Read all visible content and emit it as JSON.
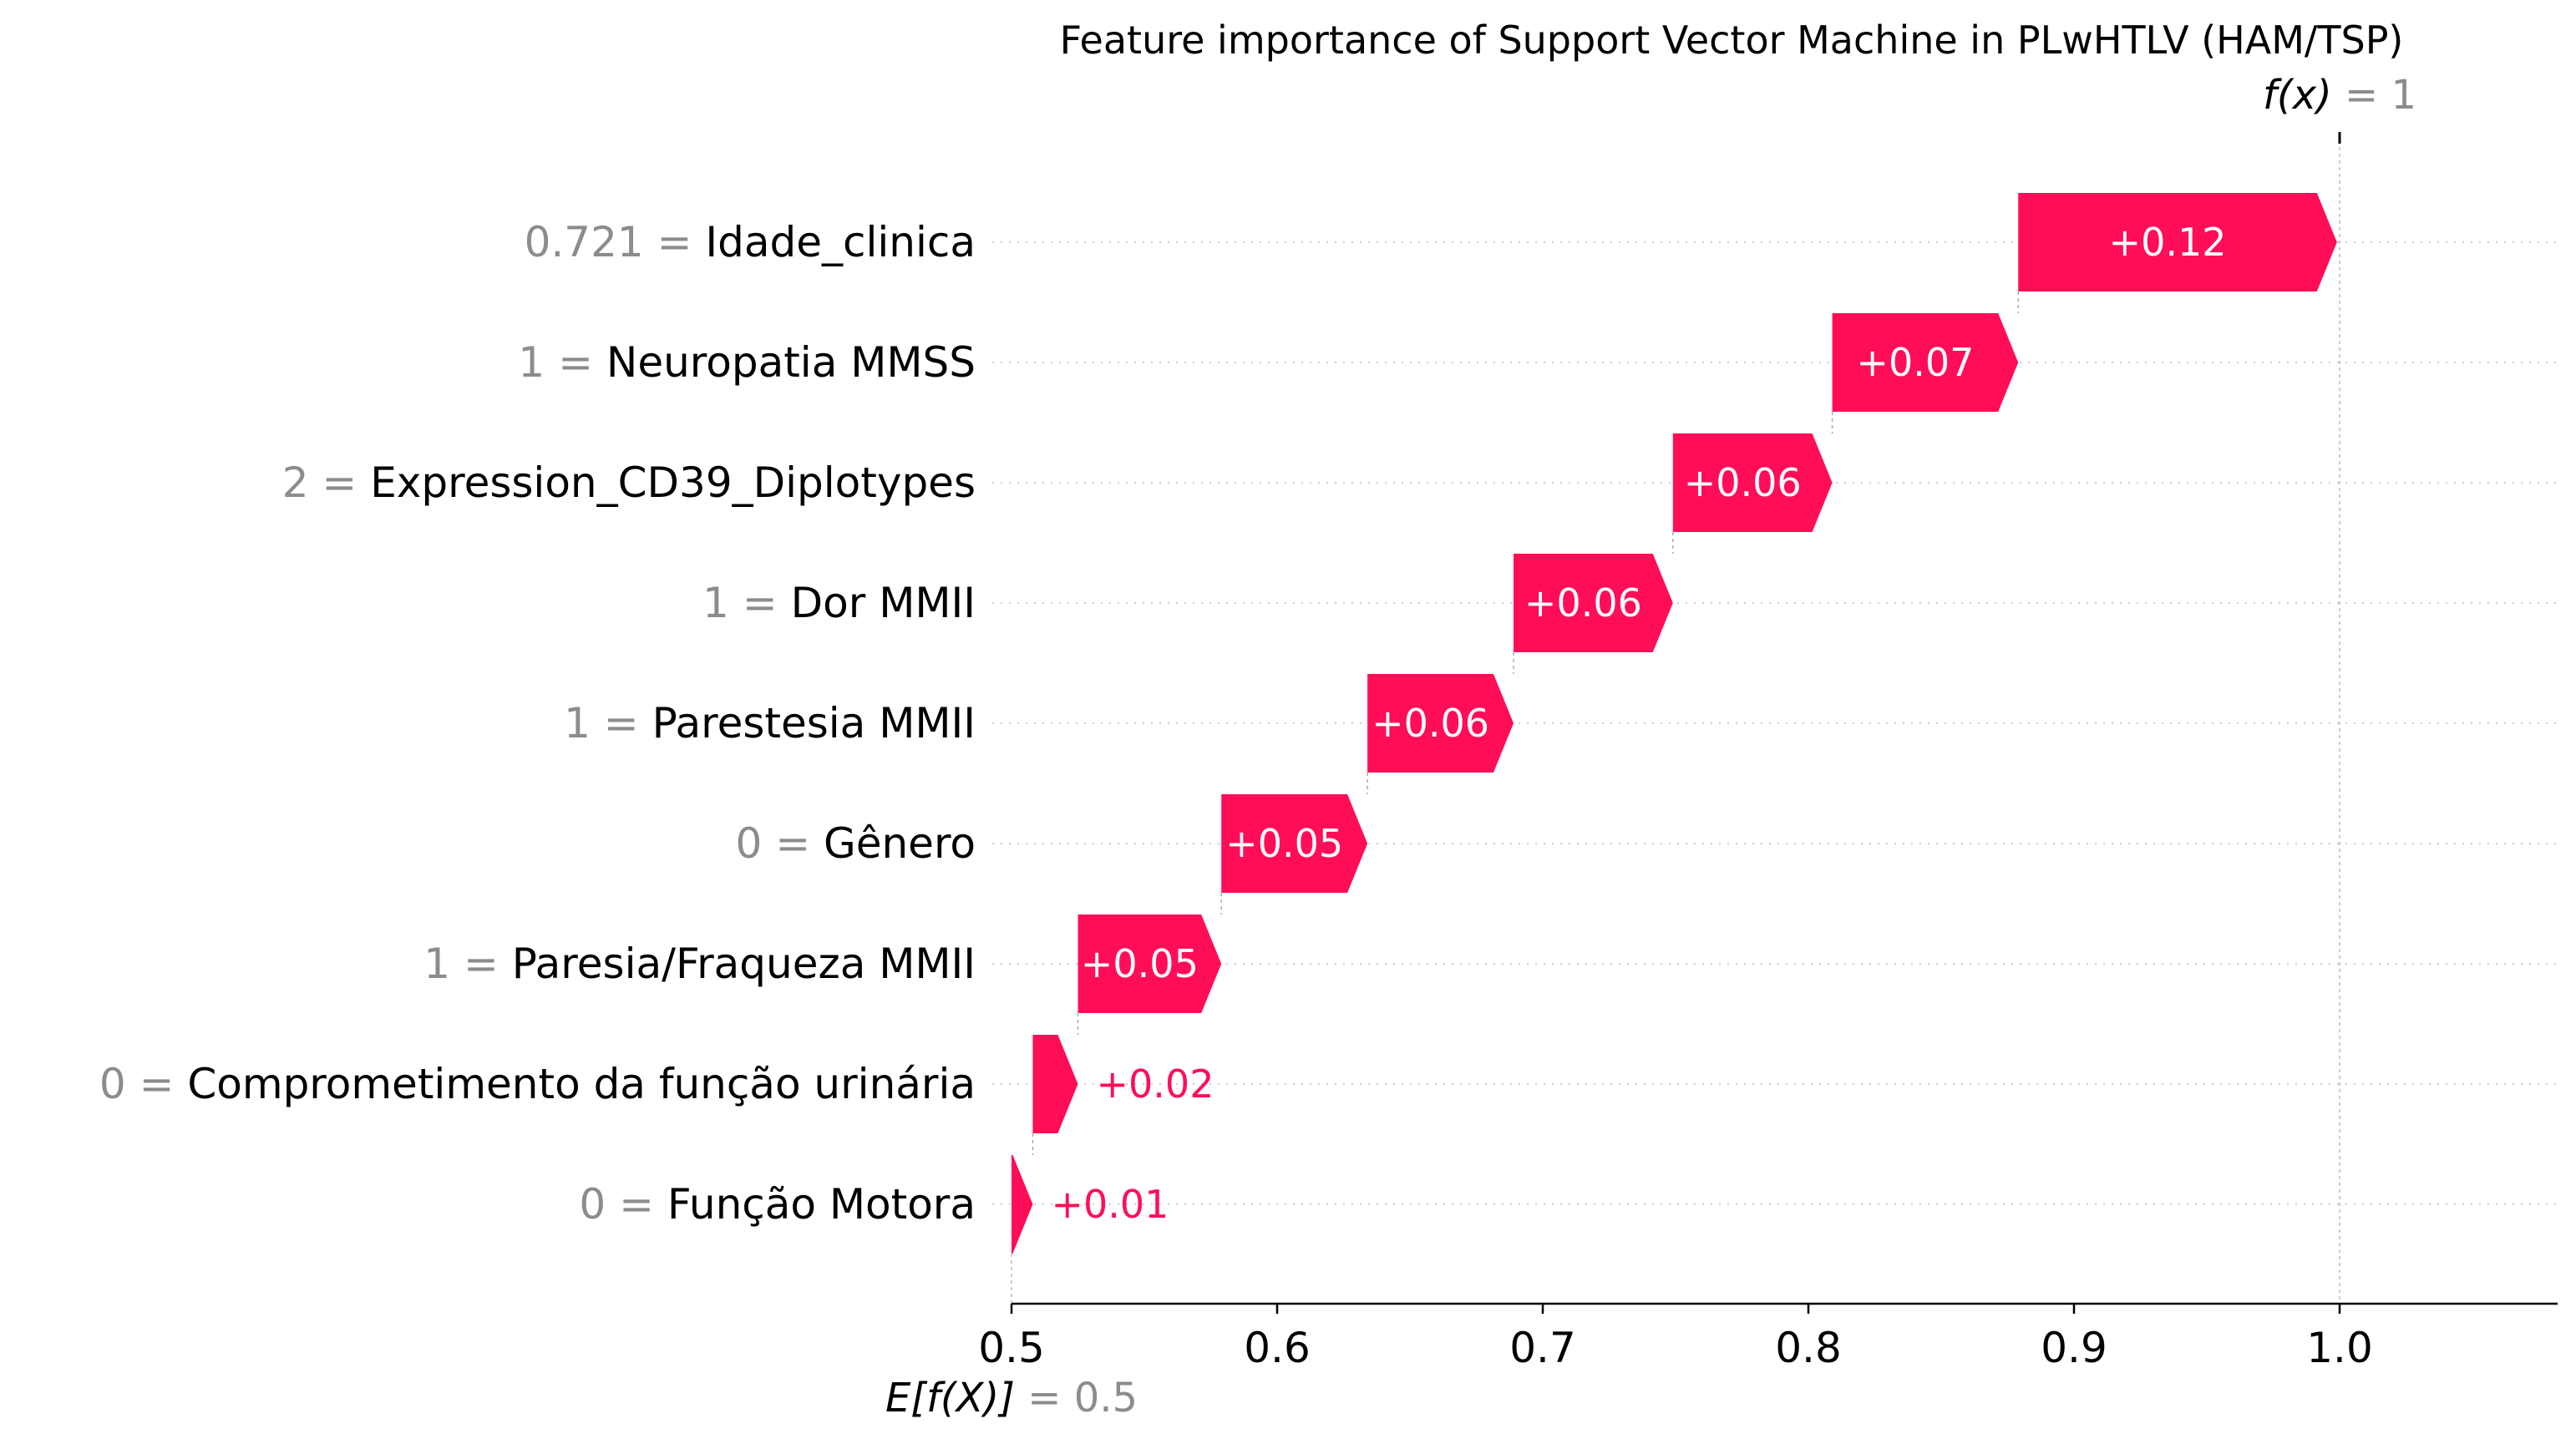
{
  "chart_data": {
    "type": "waterfall",
    "title": "Feature importance of Support Vector Machine in PLwHTLV (HAM/TSP)",
    "base_value": 0.5,
    "output_value": 1,
    "base_label": {
      "prefix": "E[f(X)]",
      "eq": " = ",
      "value": "0.5"
    },
    "output_label": {
      "prefix": "f(x)",
      "eq": " = ",
      "value": "1"
    },
    "xlim": [
      0.5,
      1.08
    ],
    "xticks": [
      0.5,
      0.6,
      0.7,
      0.8,
      0.9,
      1.0
    ],
    "xtick_labels": [
      "0.5",
      "0.6",
      "0.7",
      "0.8",
      "0.9",
      "1.0"
    ],
    "grid": "horizontal-dotted",
    "positive_color": "#ff0d57",
    "features": [
      {
        "value": "0.721",
        "name": "Idade_clinica",
        "contribution": 0.12,
        "label": "+0.12"
      },
      {
        "value": "1",
        "name": "Neuropatia MMSS",
        "contribution": 0.07,
        "label": "+0.07"
      },
      {
        "value": "2",
        "name": "Expression_CD39_Diplotypes",
        "contribution": 0.06,
        "label": "+0.06"
      },
      {
        "value": "1",
        "name": "Dor MMII",
        "contribution": 0.06,
        "label": "+0.06"
      },
      {
        "value": "1",
        "name": "Parestesia MMII",
        "contribution": 0.055,
        "label": "+0.06"
      },
      {
        "value": "0",
        "name": "Gênero",
        "contribution": 0.055,
        "label": "+0.05"
      },
      {
        "value": "1",
        "name": "Paresia/Fraqueza MMII",
        "contribution": 0.054,
        "label": "+0.05"
      },
      {
        "value": "0",
        "name": "Comprometimento da função urinária",
        "contribution": 0.017,
        "label": "+0.02"
      },
      {
        "value": "0",
        "name": "Função Motora",
        "contribution": 0.008,
        "label": "+0.01"
      }
    ]
  }
}
